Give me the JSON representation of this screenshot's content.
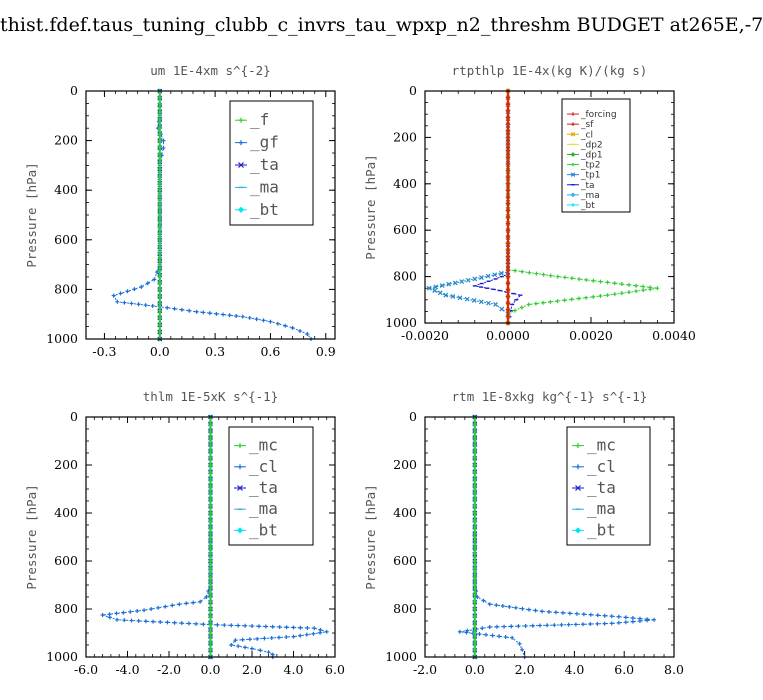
{
  "title": "thist.fdef.taus_tuning_clubb_c_invrs_tau_wpxp_n2_threshm  BUDGET at265E,-7",
  "chart_data": [
    {
      "type": "line",
      "title": "um   1E-4xm s^{-2}",
      "ylabel": "Pressure [hPa]",
      "xlim": [
        -0.4,
        0.95
      ],
      "ylim": [
        1000,
        0
      ],
      "xticks": [
        -0.3,
        0.0,
        0.3,
        0.6,
        0.9
      ],
      "xtick_labels": [
        "-0.3",
        "0.0",
        "0.3",
        "0.6",
        "0.9"
      ],
      "yticks": [
        0,
        200,
        400,
        600,
        800,
        1000
      ],
      "legend": "top-right",
      "series": [
        {
          "name": "_f",
          "color": "#33cc33",
          "x": [
            0,
            0,
            0,
            0,
            0,
            0,
            0,
            0,
            0,
            0
          ],
          "y": [
            0,
            100,
            200,
            300,
            400,
            500,
            600,
            700,
            800,
            1000
          ]
        },
        {
          "name": "_gf",
          "color": "#1a6fd6",
          "x": [
            0,
            0,
            -0.01,
            0.02,
            0.02,
            0.01,
            0,
            0,
            -0.03,
            -0.1,
            -0.25,
            -0.23,
            0,
            0.2,
            0.45,
            0.6,
            0.72,
            0.8,
            0.82
          ],
          "y": [
            0,
            100,
            150,
            200,
            230,
            260,
            300,
            700,
            760,
            790,
            825,
            850,
            870,
            890,
            910,
            930,
            955,
            980,
            1000
          ]
        },
        {
          "name": "_ta",
          "color": "#1a1acc",
          "x": [
            0,
            0,
            0,
            0,
            0,
            0
          ],
          "y": [
            0,
            200,
            400,
            600,
            800,
            1000
          ]
        },
        {
          "name": "_ma",
          "color": "#33aaee",
          "x": [
            0,
            0,
            0,
            0,
            0,
            0
          ],
          "y": [
            0,
            200,
            400,
            600,
            800,
            1000
          ]
        },
        {
          "name": "_bt",
          "color": "#00e5ee",
          "x": [
            0,
            0,
            0,
            0,
            0,
            0
          ],
          "y": [
            0,
            200,
            400,
            600,
            800,
            1000
          ]
        }
      ]
    },
    {
      "type": "line",
      "title": "rtpthlp   1E-4x(kg K)/(kg s)",
      "ylabel": "Pressure [hPa]",
      "xlim": [
        -0.002,
        0.004
      ],
      "ylim": [
        1000,
        0
      ],
      "xticks": [
        -0.002,
        0.0,
        0.002,
        0.004
      ],
      "xtick_labels": [
        "-0.0020",
        "0.0000",
        "0.0020",
        "0.0040"
      ],
      "yticks": [
        0,
        200,
        400,
        600,
        800,
        1000
      ],
      "legend": "top-right",
      "series": [
        {
          "name": "_forcing",
          "color": "#dd2222",
          "x": [
            0,
            0,
            0,
            0,
            0,
            0
          ],
          "y": [
            0,
            200,
            400,
            600,
            800,
            1000
          ]
        },
        {
          "name": "_sf",
          "color": "#cc2222",
          "x": [
            0,
            0,
            0,
            0,
            0,
            0
          ],
          "y": [
            0,
            200,
            400,
            600,
            800,
            1000
          ]
        },
        {
          "name": "_cl",
          "color": "#ddaa00",
          "x": [
            0,
            0,
            0,
            0,
            0,
            0
          ],
          "y": [
            0,
            200,
            400,
            600,
            800,
            1000
          ]
        },
        {
          "name": "_dp2",
          "color": "#dddd33",
          "x": [
            0,
            0,
            0,
            0,
            0,
            0
          ],
          "y": [
            0,
            200,
            400,
            600,
            800,
            1000
          ]
        },
        {
          "name": "_dp1",
          "color": "#33aa33",
          "x": [
            0,
            0,
            0,
            0,
            0,
            0
          ],
          "y": [
            0,
            200,
            400,
            600,
            800,
            1000
          ]
        },
        {
          "name": "_tp2",
          "color": "#33cc33",
          "x": [
            0,
            0,
            0.0012,
            0.0036,
            0.0024,
            0.0005,
            0,
            0
          ],
          "y": [
            0,
            770,
            800,
            850,
            880,
            920,
            960,
            1000
          ]
        },
        {
          "name": "_tp1",
          "color": "#2288cc",
          "x": [
            0,
            0,
            -0.0008,
            -0.0019,
            -0.0015,
            -0.0003,
            0,
            0
          ],
          "y": [
            0,
            780,
            810,
            850,
            880,
            920,
            960,
            1000
          ]
        },
        {
          "name": "_ta",
          "color": "#1a1acc",
          "x": [
            0,
            0,
            -0.0003,
            -0.0008,
            -0.0002,
            0.0003,
            0.0001,
            0
          ],
          "y": [
            0,
            790,
            810,
            840,
            860,
            880,
            920,
            1000
          ]
        },
        {
          "name": "_ma",
          "color": "#33aaee",
          "x": [
            0,
            0,
            0,
            0,
            0,
            0
          ],
          "y": [
            0,
            200,
            400,
            600,
            800,
            1000
          ]
        },
        {
          "name": "_bt",
          "color": "#00e5ee",
          "x": [
            0,
            0,
            0,
            0,
            0,
            0
          ],
          "y": [
            0,
            200,
            400,
            600,
            800,
            1000
          ]
        }
      ]
    },
    {
      "type": "line",
      "title": "thlm   1E-5xK s^{-1}",
      "ylabel": "Pressure [hPa]",
      "xlim": [
        -6.0,
        6.0
      ],
      "ylim": [
        1000,
        0
      ],
      "xticks": [
        -6,
        -4,
        -2,
        0,
        2,
        4,
        6
      ],
      "xtick_labels": [
        "-6.0",
        "-4.0",
        "-2.0",
        "0.0",
        "2.0",
        "4.0",
        "6.0"
      ],
      "yticks": [
        0,
        200,
        400,
        600,
        800,
        1000
      ],
      "legend": "top-right",
      "series": [
        {
          "name": "_mc",
          "color": "#33cc33",
          "x": [
            0,
            0,
            0,
            0,
            0,
            0,
            0,
            0,
            0,
            0,
            0
          ],
          "y": [
            0,
            100,
            200,
            300,
            400,
            500,
            600,
            700,
            800,
            900,
            1000
          ]
        },
        {
          "name": "_cl",
          "color": "#1a6fd6",
          "x": [
            0,
            0,
            -0.2,
            -0.5,
            -1.5,
            -3.2,
            -5.2,
            -4.5,
            0,
            5.0,
            5.6,
            4.0,
            1.2,
            1.0,
            2.0,
            2.8,
            3.0,
            3.0
          ],
          "y": [
            0,
            700,
            750,
            770,
            780,
            805,
            825,
            845,
            865,
            880,
            895,
            915,
            930,
            950,
            965,
            980,
            990,
            1000
          ]
        },
        {
          "name": "_ta",
          "color": "#1a1acc",
          "x": [
            0,
            0,
            0,
            0,
            0,
            0
          ],
          "y": [
            0,
            200,
            400,
            600,
            800,
            1000
          ]
        },
        {
          "name": "_ma",
          "color": "#33aaee",
          "x": [
            0,
            0,
            0,
            0,
            0,
            0
          ],
          "y": [
            0,
            200,
            400,
            600,
            800,
            1000
          ]
        },
        {
          "name": "_bt",
          "color": "#00e5ee",
          "x": [
            0,
            0,
            0,
            0,
            0,
            0
          ],
          "y": [
            0,
            200,
            400,
            600,
            800,
            1000
          ]
        }
      ]
    },
    {
      "type": "line",
      "title": "rtm   1E-8xkg kg^{-1} s^{-1}",
      "ylabel": "Pressure [hPa]",
      "xlim": [
        -2.0,
        8.0
      ],
      "ylim": [
        1000,
        0
      ],
      "xticks": [
        -2,
        0,
        2,
        4,
        6,
        8
      ],
      "xtick_labels": [
        "-2.0",
        "0.0",
        "2.0",
        "4.0",
        "6.0",
        "8.0"
      ],
      "yticks": [
        0,
        200,
        400,
        600,
        800,
        1000
      ],
      "legend": "top-right",
      "series": [
        {
          "name": "_mc",
          "color": "#33cc33",
          "x": [
            0,
            0,
            0,
            0,
            0,
            0,
            0,
            0,
            0,
            0,
            0
          ],
          "y": [
            0,
            100,
            200,
            300,
            400,
            500,
            600,
            700,
            800,
            900,
            1000
          ]
        },
        {
          "name": "_cl",
          "color": "#1a6fd6",
          "x": [
            0,
            0,
            0.1,
            0.6,
            2.7,
            5.5,
            7.2,
            5.5,
            0.6,
            -0.6,
            1.5,
            1.8,
            1.9,
            2.0
          ],
          "y": [
            0,
            700,
            750,
            780,
            810,
            830,
            845,
            860,
            875,
            895,
            920,
            945,
            970,
            1000
          ]
        },
        {
          "name": "_ta",
          "color": "#1a1acc",
          "x": [
            0,
            0,
            0,
            0,
            0,
            0
          ],
          "y": [
            0,
            200,
            400,
            600,
            800,
            1000
          ]
        },
        {
          "name": "_ma",
          "color": "#33aaee",
          "x": [
            0,
            0,
            0,
            0,
            0,
            0
          ],
          "y": [
            0,
            200,
            400,
            600,
            800,
            1000
          ]
        },
        {
          "name": "_bt",
          "color": "#00e5ee",
          "x": [
            0,
            0,
            0,
            0,
            0,
            0
          ],
          "y": [
            0,
            200,
            400,
            600,
            800,
            1000
          ]
        }
      ]
    }
  ]
}
